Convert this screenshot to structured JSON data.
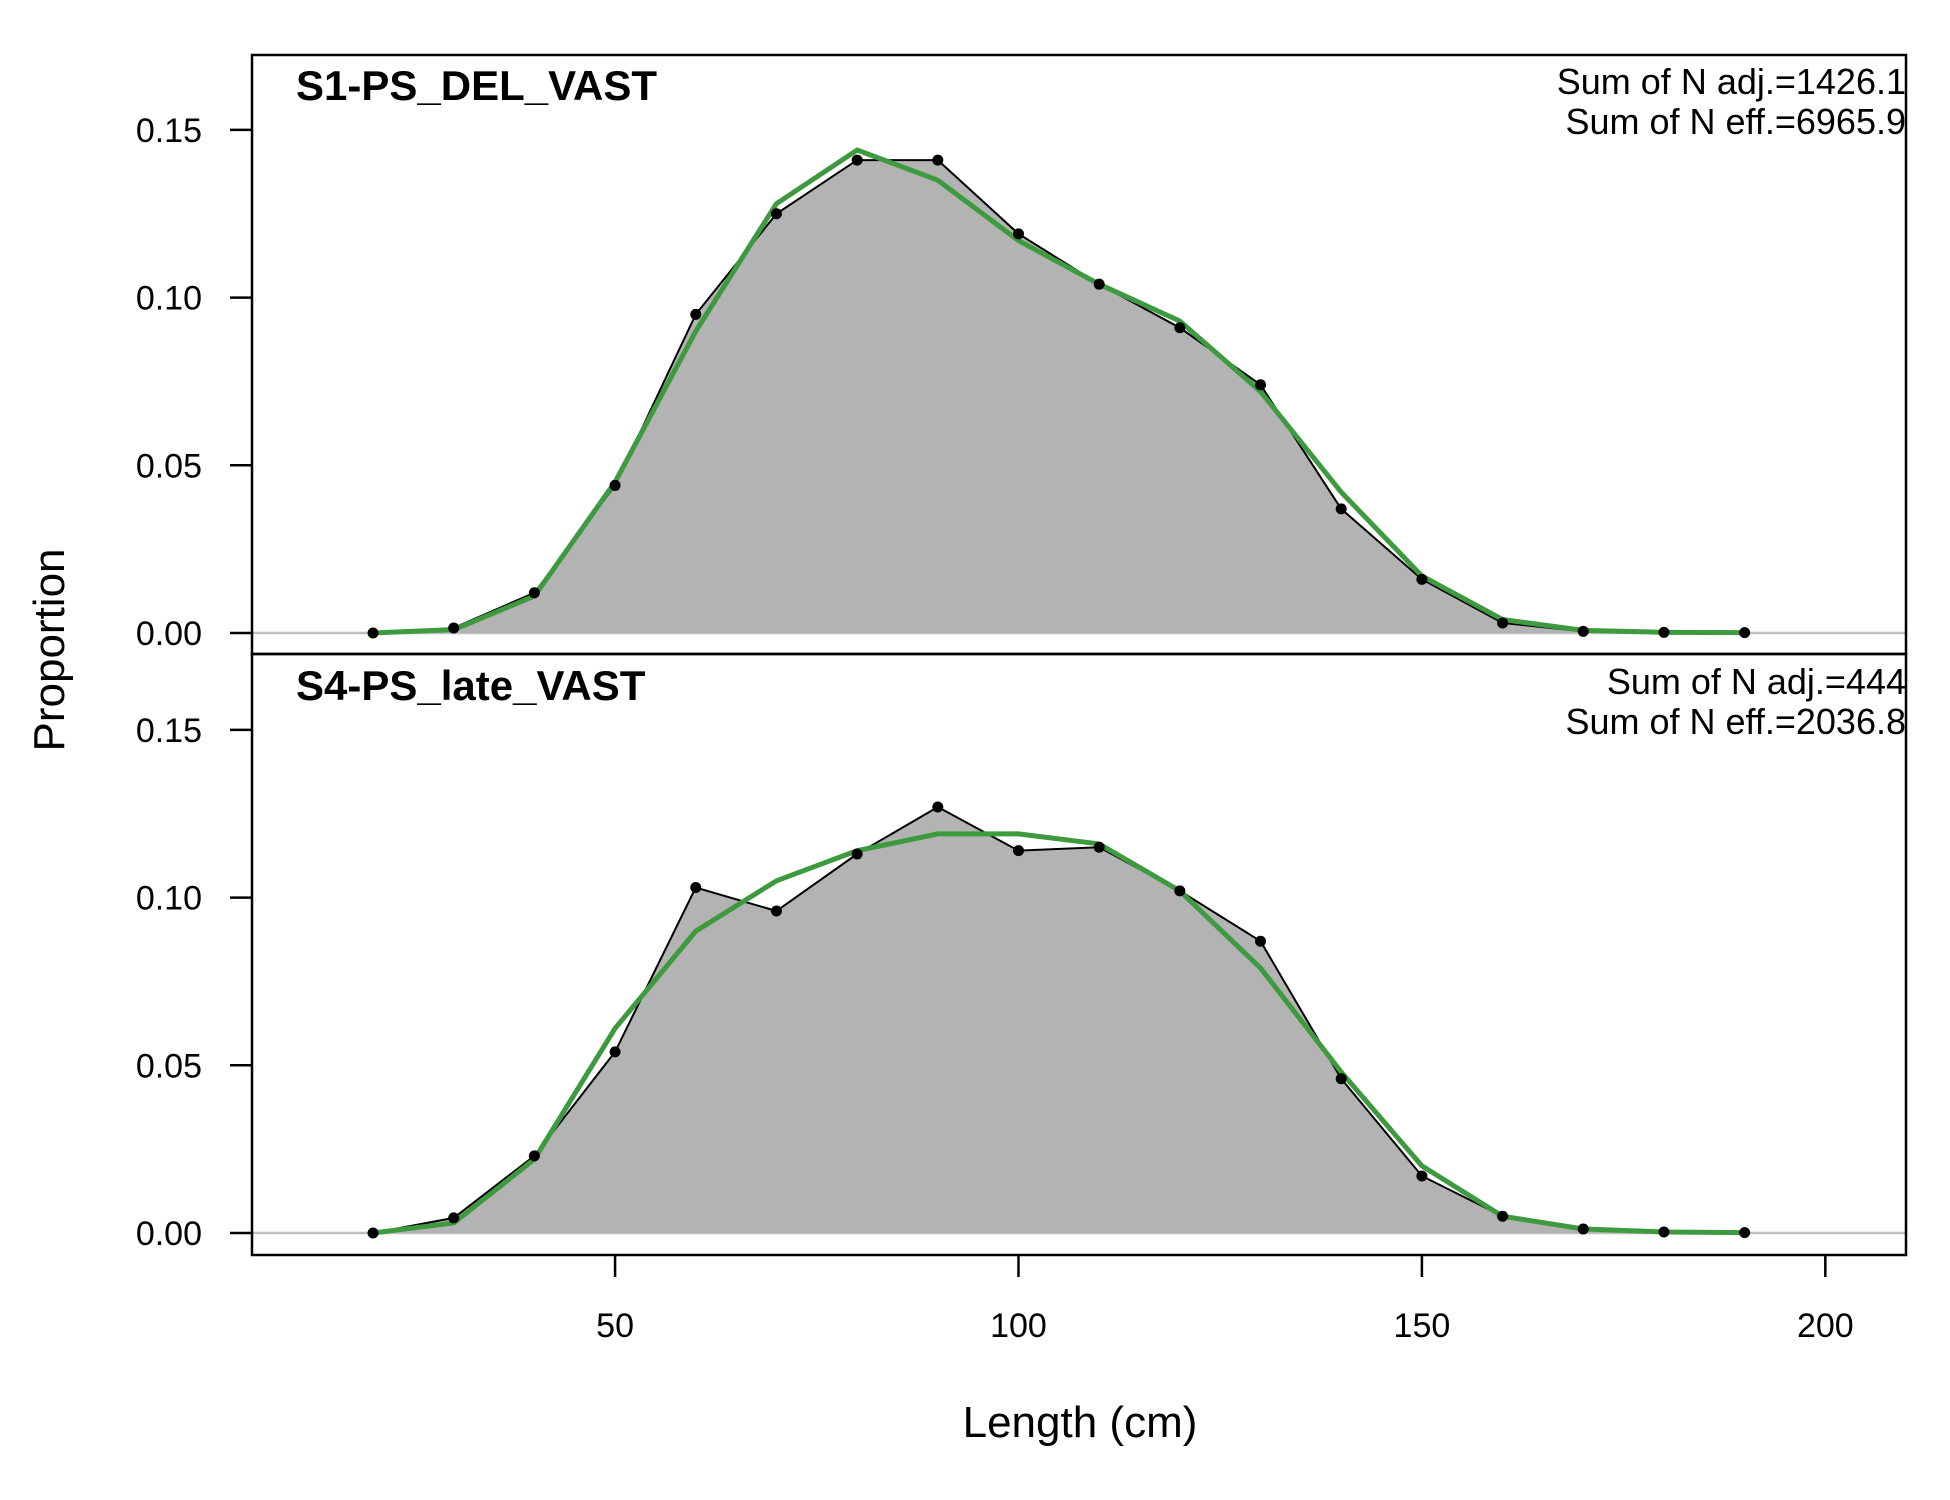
{
  "chart_data": {
    "type": "area",
    "xlabel": "Length (cm)",
    "ylabel": "Proportion",
    "xlim": [
      5,
      210
    ],
    "ylim": [
      -0.005,
      0.165
    ],
    "xticks": [
      50,
      100,
      150,
      200
    ],
    "xtick_labels": [
      "50",
      "100",
      "150",
      "200"
    ],
    "yticks": [
      0.0,
      0.05,
      0.1,
      0.15
    ],
    "ytick_labels": [
      "0.00",
      "0.05",
      "0.10",
      "0.15"
    ],
    "colors": {
      "observed_fill": "#b3b3b3",
      "observed_line": "#000000",
      "expected_line": "#3e9a3e",
      "zero_line": "#bfbfbf"
    },
    "panels": [
      {
        "title": "S1-PS_DEL_VAST",
        "stat_adj": "Sum of N adj.=1426.1",
        "stat_eff": "Sum of N eff.=6965.9",
        "x": [
          20,
          30,
          40,
          50,
          60,
          70,
          80,
          90,
          100,
          110,
          120,
          130,
          140,
          150,
          160,
          170,
          180,
          190
        ],
        "observed": [
          0.0,
          0.0015,
          0.012,
          0.044,
          0.095,
          0.125,
          0.141,
          0.141,
          0.119,
          0.104,
          0.091,
          0.074,
          0.037,
          0.016,
          0.003,
          0.0005,
          0.0002,
          0.0001
        ],
        "expected": [
          0.0,
          0.001,
          0.011,
          0.045,
          0.09,
          0.128,
          0.144,
          0.135,
          0.117,
          0.104,
          0.093,
          0.072,
          0.042,
          0.017,
          0.004,
          0.0008,
          0.0002,
          0.0001
        ]
      },
      {
        "title": "S4-PS_late_VAST",
        "stat_adj": "Sum of N adj.=444",
        "stat_eff": "Sum of N eff.=2036.8",
        "x": [
          20,
          30,
          40,
          50,
          60,
          70,
          80,
          90,
          100,
          110,
          120,
          130,
          140,
          150,
          160,
          170,
          180,
          190
        ],
        "observed": [
          0.0,
          0.0045,
          0.023,
          0.054,
          0.103,
          0.096,
          0.113,
          0.127,
          0.114,
          0.115,
          0.102,
          0.087,
          0.046,
          0.017,
          0.005,
          0.0012,
          0.0003,
          0.0001
        ],
        "expected": [
          0.0,
          0.003,
          0.022,
          0.061,
          0.09,
          0.105,
          0.114,
          0.119,
          0.119,
          0.116,
          0.102,
          0.079,
          0.048,
          0.02,
          0.005,
          0.0012,
          0.0003,
          0.0001
        ]
      }
    ]
  }
}
